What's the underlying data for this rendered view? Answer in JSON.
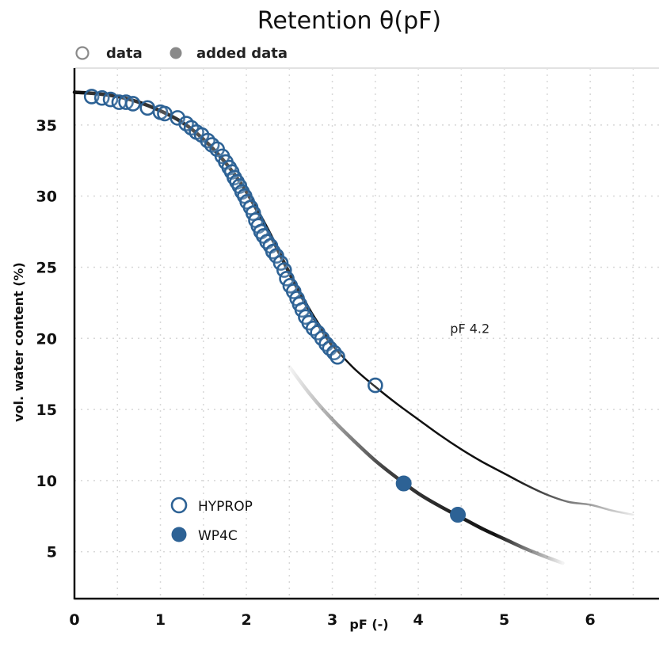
{
  "chart_data": {
    "type": "scatter",
    "title": "Retention θ(pF)",
    "xlabel": "pF (-)",
    "ylabel": "vol. water content (%)",
    "xlim": [
      0,
      6.8
    ],
    "ylim": [
      1.7,
      39
    ],
    "xticks": [
      0,
      1,
      2,
      3,
      4,
      5,
      6
    ],
    "yticks": [
      5,
      10,
      15,
      20,
      25,
      30,
      35
    ],
    "grid": true,
    "top_legend": [
      {
        "label": "data",
        "marker": "open-circle"
      },
      {
        "label": "added data",
        "marker": "filled-circle"
      }
    ],
    "legend_placement": "bottom-left",
    "annotations": [
      {
        "text": "pF 4.2",
        "x": 4.6,
        "y": 20.7
      }
    ],
    "series": [
      {
        "name": "HYPROP",
        "marker": "open-circle",
        "color": "#2d6295",
        "points": [
          [
            0.2,
            37.0
          ],
          [
            0.32,
            36.9
          ],
          [
            0.42,
            36.8
          ],
          [
            0.52,
            36.6
          ],
          [
            0.6,
            36.6
          ],
          [
            0.68,
            36.5
          ],
          [
            0.85,
            36.2
          ],
          [
            1.0,
            35.9
          ],
          [
            1.05,
            35.8
          ],
          [
            1.2,
            35.5
          ],
          [
            1.3,
            35.1
          ],
          [
            1.36,
            34.8
          ],
          [
            1.42,
            34.5
          ],
          [
            1.48,
            34.3
          ],
          [
            1.55,
            33.9
          ],
          [
            1.6,
            33.6
          ],
          [
            1.66,
            33.3
          ],
          [
            1.72,
            32.8
          ],
          [
            1.76,
            32.4
          ],
          [
            1.8,
            32.0
          ],
          [
            1.83,
            31.7
          ],
          [
            1.86,
            31.3
          ],
          [
            1.89,
            31.0
          ],
          [
            1.92,
            30.7
          ],
          [
            1.95,
            30.3
          ],
          [
            1.98,
            30.0
          ],
          [
            2.01,
            29.6
          ],
          [
            2.05,
            29.2
          ],
          [
            2.08,
            28.8
          ],
          [
            2.11,
            28.3
          ],
          [
            2.14,
            27.9
          ],
          [
            2.17,
            27.5
          ],
          [
            2.2,
            27.2
          ],
          [
            2.24,
            26.8
          ],
          [
            2.28,
            26.5
          ],
          [
            2.31,
            26.1
          ],
          [
            2.35,
            25.8
          ],
          [
            2.4,
            25.3
          ],
          [
            2.44,
            24.8
          ],
          [
            2.47,
            24.2
          ],
          [
            2.51,
            23.7
          ],
          [
            2.55,
            23.3
          ],
          [
            2.59,
            22.8
          ],
          [
            2.62,
            22.4
          ],
          [
            2.65,
            22.0
          ],
          [
            2.69,
            21.5
          ],
          [
            2.73,
            21.1
          ],
          [
            2.78,
            20.7
          ],
          [
            2.83,
            20.4
          ],
          [
            2.88,
            20.0
          ],
          [
            2.93,
            19.6
          ],
          [
            2.97,
            19.3
          ],
          [
            3.02,
            19.0
          ],
          [
            3.06,
            18.7
          ],
          [
            3.5,
            16.7
          ]
        ],
        "fit_curve": [
          [
            0.0,
            37.3
          ],
          [
            0.25,
            37.2
          ],
          [
            0.5,
            37.0
          ],
          [
            0.75,
            36.6
          ],
          [
            1.0,
            36.0
          ],
          [
            1.25,
            35.2
          ],
          [
            1.5,
            34.0
          ],
          [
            1.75,
            32.4
          ],
          [
            2.0,
            30.3
          ],
          [
            2.25,
            27.6
          ],
          [
            2.5,
            24.6
          ],
          [
            2.75,
            21.8
          ],
          [
            3.0,
            19.5
          ],
          [
            3.25,
            17.9
          ],
          [
            3.5,
            16.6
          ],
          [
            3.75,
            15.4
          ],
          [
            4.0,
            14.3
          ],
          [
            4.25,
            13.2
          ],
          [
            4.5,
            12.2
          ],
          [
            4.75,
            11.3
          ],
          [
            5.0,
            10.5
          ],
          [
            5.25,
            9.7
          ],
          [
            5.5,
            9.0
          ],
          [
            5.75,
            8.5
          ],
          [
            6.0,
            8.3
          ],
          [
            6.25,
            7.9
          ],
          [
            6.5,
            7.6
          ]
        ]
      },
      {
        "name": "WP4C",
        "marker": "filled-circle",
        "color": "#2d6295",
        "points": [
          [
            3.83,
            9.8
          ],
          [
            4.46,
            7.6
          ]
        ],
        "fit_curve": [
          [
            2.5,
            18.0
          ],
          [
            2.75,
            16.0
          ],
          [
            3.0,
            14.3
          ],
          [
            3.25,
            12.8
          ],
          [
            3.5,
            11.4
          ],
          [
            3.75,
            10.2
          ],
          [
            4.0,
            9.1
          ],
          [
            4.25,
            8.2
          ],
          [
            4.5,
            7.4
          ],
          [
            4.75,
            6.6
          ],
          [
            5.0,
            5.9
          ],
          [
            5.25,
            5.2
          ],
          [
            5.5,
            4.6
          ],
          [
            5.68,
            4.2
          ]
        ]
      }
    ]
  }
}
